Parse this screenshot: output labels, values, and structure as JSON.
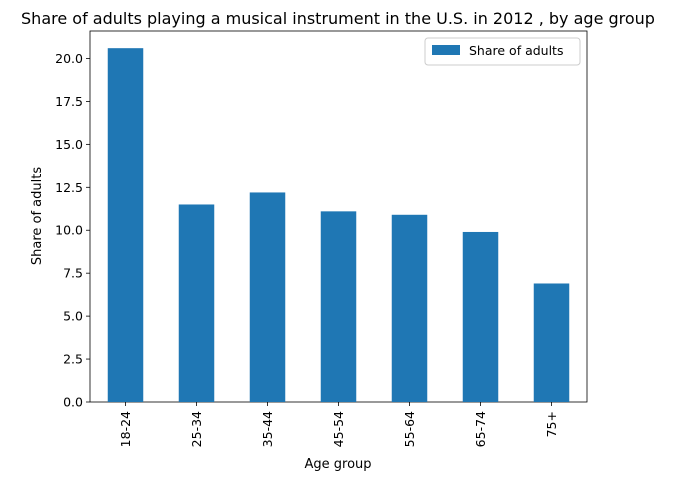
{
  "chart_data": {
    "type": "bar",
    "title": "Share of adults playing a musical instrument in the U.S. in 2012 , by age group",
    "xlabel": "Age group",
    "ylabel": "Share of adults",
    "categories": [
      "18-24",
      "25-34",
      "35-44",
      "45-54",
      "55-64",
      "65-74",
      "75+"
    ],
    "series": [
      {
        "name": "Share of adults",
        "values": [
          20.6,
          11.5,
          12.2,
          11.1,
          10.9,
          9.9,
          6.9
        ],
        "color": "#1f77b4"
      }
    ],
    "ylim": [
      0,
      21.6
    ],
    "yticks": [
      "0.0",
      "2.5",
      "5.0",
      "7.5",
      "10.0",
      "12.5",
      "15.0",
      "17.5",
      "20.0"
    ],
    "ytick_values": [
      0,
      2.5,
      5,
      7.5,
      10,
      12.5,
      15,
      17.5,
      20
    ],
    "legend_position": "top-right",
    "grid": false
  }
}
